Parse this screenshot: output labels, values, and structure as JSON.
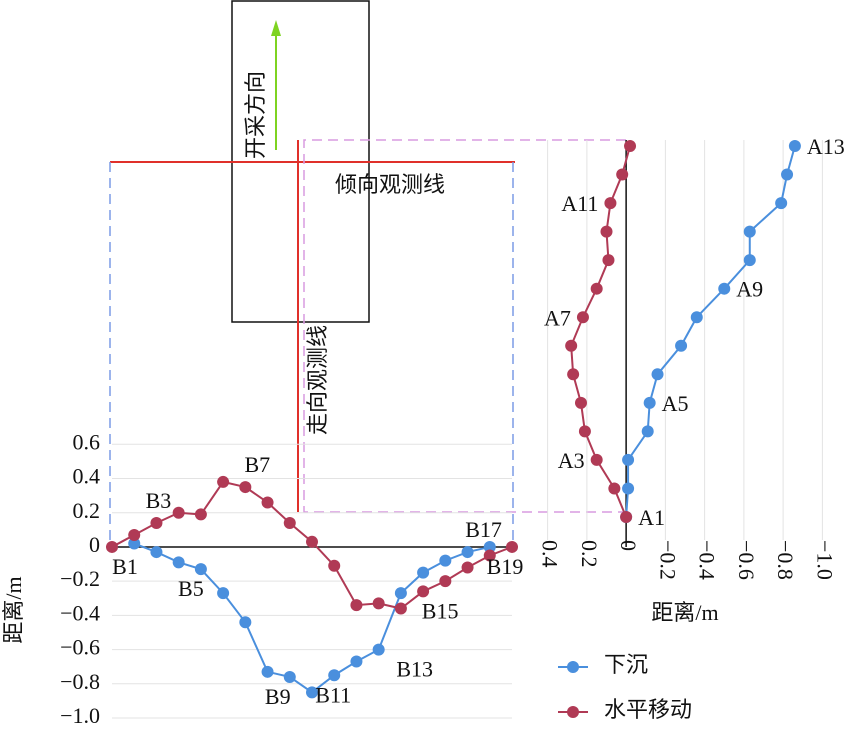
{
  "chart_data": [
    {
      "type": "line",
      "ylabel": "距离/m",
      "categories": [
        "B1",
        null,
        "B3",
        null,
        "B5",
        null,
        "B7",
        null,
        "B9",
        null,
        "B11",
        null,
        "B13",
        null,
        "B15",
        null,
        "B17",
        null,
        "B19"
      ],
      "series": [
        {
          "name": "下沉",
          "color": "#4a8fdd",
          "values": [
            null,
            0.02,
            -0.03,
            -0.09,
            -0.13,
            -0.27,
            -0.44,
            -0.73,
            -0.76,
            -0.85,
            -0.75,
            -0.67,
            -0.6,
            -0.27,
            -0.15,
            -0.08,
            -0.03,
            0,
            null
          ]
        },
        {
          "name": "水平移动",
          "color": "#b03a55",
          "values": [
            0,
            0.07,
            0.14,
            0.2,
            0.19,
            0.38,
            0.35,
            0.26,
            0.14,
            0.03,
            -0.11,
            -0.34,
            -0.33,
            -0.36,
            -0.26,
            -0.2,
            -0.12,
            -0.05,
            0
          ]
        }
      ],
      "ylim": [
        -1.0,
        0.6
      ],
      "yticks": [
        {
          "value": -1.0,
          "label": "−1.0"
        },
        {
          "value": -0.8,
          "label": "−0.8"
        },
        {
          "value": -0.6,
          "label": "−0.6"
        },
        {
          "value": -0.4,
          "label": "−0.4"
        },
        {
          "value": -0.2,
          "label": "−0.2"
        },
        0,
        0.2,
        0.4,
        0.6
      ],
      "grid": true,
      "legend": "lower right",
      "annotations": [
        "开采方向",
        "倾向观测线",
        "走向观测线"
      ]
    },
    {
      "type": "vline",
      "xlabel": "距离/m",
      "categories": [
        "A1",
        null,
        "A3",
        null,
        "A5",
        null,
        null,
        "A7",
        "A9",
        null,
        null,
        "A11",
        null,
        "A13"
      ],
      "series": [
        {
          "color": "#4a8fdd",
          "values": [
            0,
            -0.01,
            -0.01,
            -0.11,
            -0.12,
            -0.16,
            -0.28,
            -0.36,
            -0.5,
            -0.63,
            -0.63,
            -0.79,
            -0.82,
            -0.86
          ]
        },
        {
          "color": "#b03a55",
          "values": [
            0,
            0.06,
            0.15,
            0.21,
            0.23,
            0.27,
            0.28,
            0.22,
            0.15,
            0.09,
            0.1,
            0.08,
            0.02,
            -0.02
          ]
        }
      ],
      "xlim": [
        0.5,
        -1.1
      ],
      "xticks": [
        0.4,
        0.2,
        0,
        {
          "value": -0.2,
          "label": "−0.2"
        },
        {
          "value": -0.4,
          "label": "−0.4"
        },
        {
          "value": -0.6,
          "label": "−0.6"
        },
        {
          "value": -0.8,
          "label": "−0.8"
        },
        {
          "value": -1.0,
          "label": "−1.0"
        }
      ],
      "grid": true
    }
  ]
}
